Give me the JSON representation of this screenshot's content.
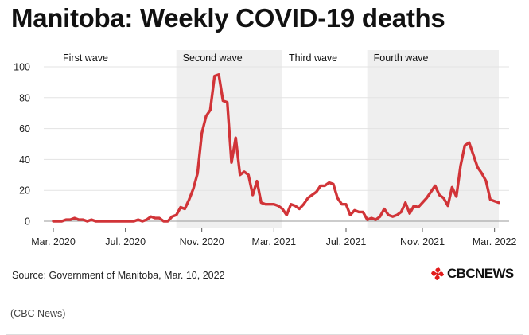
{
  "title": "Manitoba: Weekly COVID-19 deaths",
  "source": "Source: Government of Manitoba, Mar. 10, 2022",
  "logo": {
    "icon": "cbc-gem-icon",
    "text": "CBCNEWS",
    "color": "#e21b1b"
  },
  "caption": "(CBC News)",
  "chart_data": {
    "type": "line",
    "title": "Manitoba: Weekly COVID-19 deaths",
    "xlabel": "",
    "ylabel": "",
    "ylim": [
      0,
      100
    ],
    "yticks": [
      0,
      20,
      40,
      60,
      80,
      100
    ],
    "x_tick_labels": [
      "Mar. 2020",
      "Jul. 2020",
      "Nov. 2020",
      "Mar. 2021",
      "Jul. 2021",
      "Nov. 2021",
      "Mar. 2022"
    ],
    "x_tick_weeks": [
      0,
      17,
      35,
      52,
      69,
      87,
      104
    ],
    "line_color": "#d13438",
    "band_color": "#efefef",
    "waves": [
      {
        "label": "First wave",
        "start_week": 0,
        "end_week": 29,
        "shaded": false
      },
      {
        "label": "Second wave",
        "start_week": 29,
        "end_week": 54,
        "shaded": true
      },
      {
        "label": "Third wave",
        "start_week": 54,
        "end_week": 74,
        "shaded": false
      },
      {
        "label": "Fourth wave",
        "start_week": 74,
        "end_week": 105,
        "shaded": true
      }
    ],
    "series": [
      {
        "name": "Weekly deaths",
        "x": [
          0,
          1,
          2,
          3,
          4,
          5,
          6,
          7,
          8,
          9,
          10,
          11,
          12,
          13,
          14,
          15,
          16,
          17,
          18,
          19,
          20,
          21,
          22,
          23,
          24,
          25,
          26,
          27,
          28,
          29,
          30,
          31,
          32,
          33,
          34,
          35,
          36,
          37,
          38,
          39,
          40,
          41,
          42,
          43,
          44,
          45,
          46,
          47,
          48,
          49,
          50,
          51,
          52,
          53,
          54,
          55,
          56,
          57,
          58,
          59,
          60,
          61,
          62,
          63,
          64,
          65,
          66,
          67,
          68,
          69,
          70,
          71,
          72,
          73,
          74,
          75,
          76,
          77,
          78,
          79,
          80,
          81,
          82,
          83,
          84,
          85,
          86,
          87,
          88,
          89,
          90,
          91,
          92,
          93,
          94,
          95,
          96,
          97,
          98,
          99,
          100,
          101,
          102,
          103,
          104,
          105
        ],
        "values": [
          0,
          0,
          0,
          1,
          1,
          2,
          1,
          1,
          0,
          1,
          0,
          0,
          0,
          0,
          0,
          0,
          0,
          0,
          0,
          0,
          1,
          0,
          1,
          3,
          2,
          2,
          0,
          0,
          3,
          4,
          9,
          8,
          14,
          21,
          31,
          57,
          68,
          72,
          94,
          95,
          78,
          77,
          38,
          54,
          30,
          32,
          30,
          17,
          26,
          12,
          11,
          11,
          11,
          10,
          8,
          4,
          11,
          10,
          8,
          11,
          15,
          17,
          19,
          23,
          23,
          25,
          24,
          15,
          11,
          11,
          4,
          7,
          6,
          6,
          1,
          2,
          1,
          3,
          8,
          4,
          3,
          4,
          6,
          12,
          5,
          10,
          9,
          12,
          15,
          19,
          23,
          17,
          15,
          10,
          22,
          16,
          36,
          49,
          51,
          43,
          35,
          31,
          26,
          14,
          13,
          12
        ]
      }
    ]
  }
}
